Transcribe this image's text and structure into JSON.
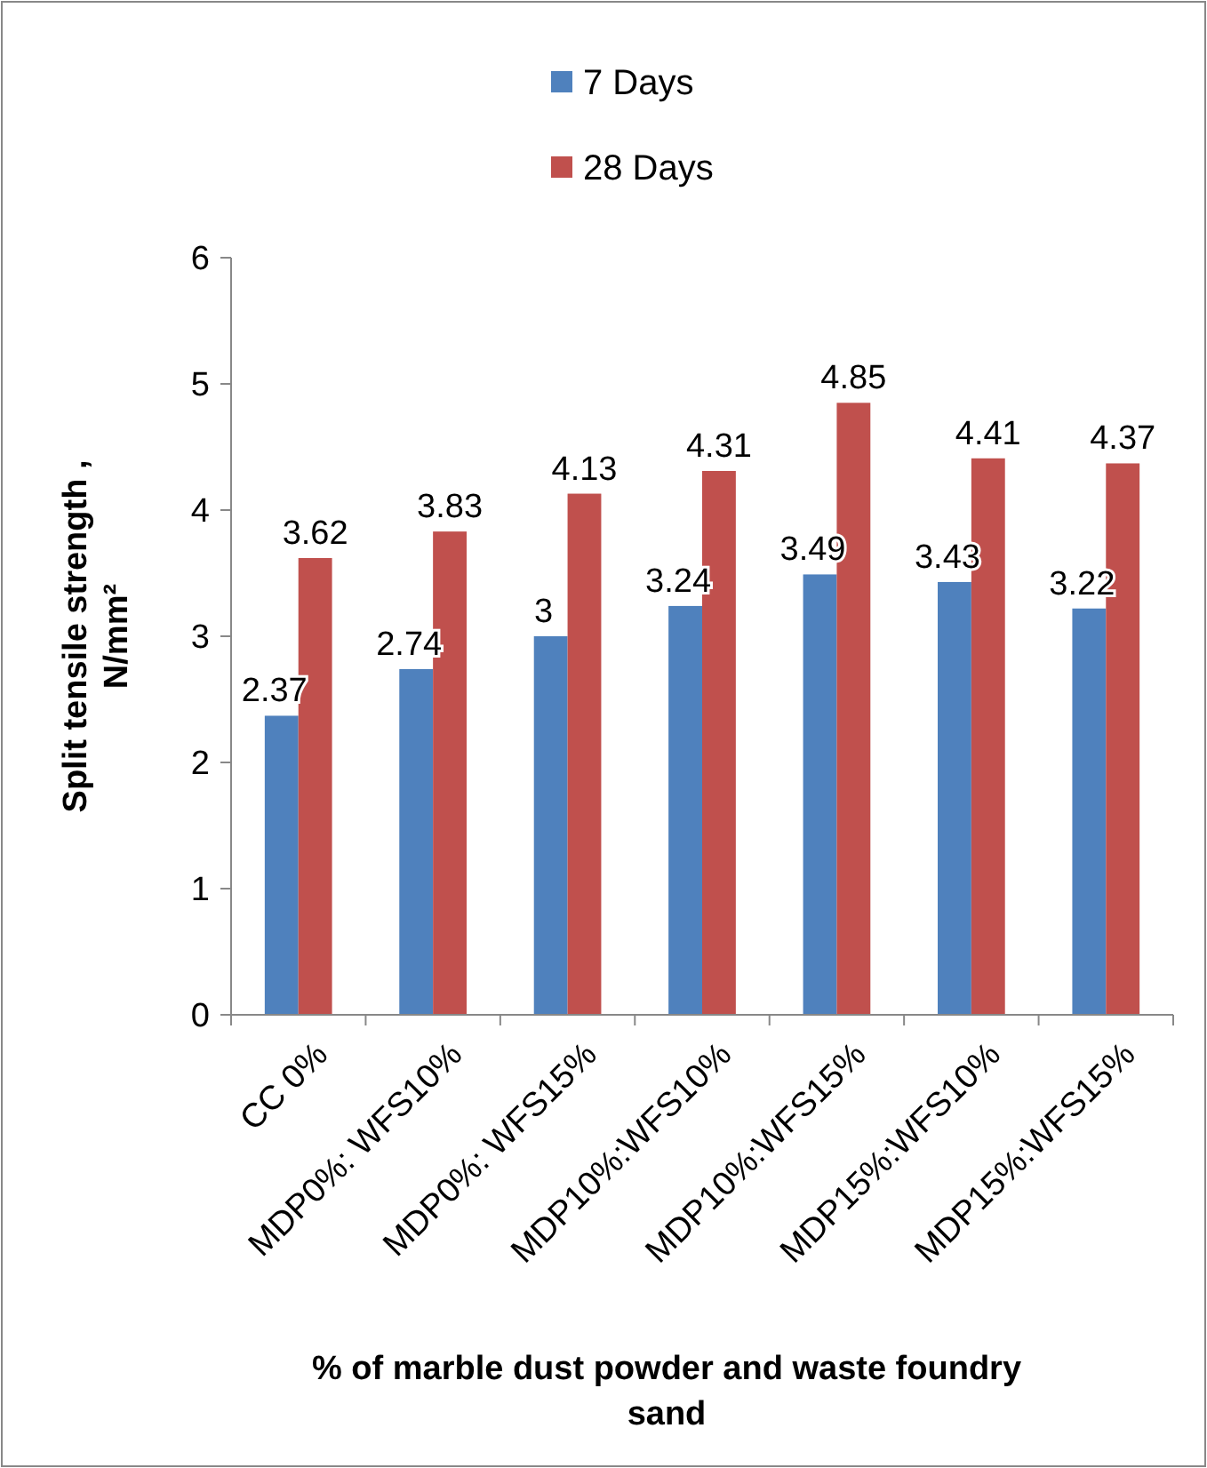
{
  "chart_data": {
    "type": "bar",
    "xlabel": "% of marble dust powder and waste foundry sand",
    "ylabel": "Split tensile strength , N/mm²",
    "categories": [
      "CC 0%",
      "MDP0%: WFS10%",
      "MDP0%: WFS15%",
      "MDP10%:WFS10%",
      "MDP10%:WFS15%",
      "MDP15%:WFS10%",
      "MDP15%:WFS15%"
    ],
    "series": [
      {
        "name": "7 Days",
        "color": "#4f81bd",
        "values": [
          2.37,
          2.74,
          3,
          3.24,
          3.49,
          3.43,
          3.22
        ]
      },
      {
        "name": "28 Days",
        "color": "#c0504d",
        "values": [
          3.62,
          3.83,
          4.13,
          4.31,
          4.85,
          4.41,
          4.37
        ]
      }
    ],
    "ylim": [
      0,
      6
    ],
    "yticks": [
      0,
      1,
      2,
      3,
      4,
      5,
      6
    ],
    "grid": false,
    "legend": "top",
    "data_labels": true
  }
}
